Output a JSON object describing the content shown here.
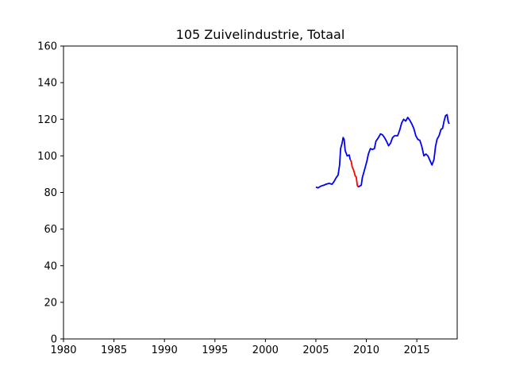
{
  "chart_data": {
    "type": "line",
    "title": "105 Zuivelindustrie, Totaal",
    "xlabel": "",
    "ylabel": "",
    "xlim": [
      1980,
      2019
    ],
    "ylim": [
      0,
      160
    ],
    "x_ticks": [
      1980,
      1985,
      1990,
      1995,
      2000,
      2005,
      2010,
      2015
    ],
    "y_ticks": [
      0,
      20,
      40,
      60,
      80,
      100,
      120,
      140,
      160
    ],
    "grid": false,
    "series": [
      {
        "color": "#0000ff",
        "points": [
          [
            2005.0,
            83.0
          ],
          [
            2005.2,
            82.5
          ],
          [
            2005.5,
            83.5
          ],
          [
            2005.8,
            84.0
          ],
          [
            2006.0,
            84.5
          ],
          [
            2006.3,
            85.0
          ],
          [
            2006.6,
            84.5
          ],
          [
            2006.8,
            86.0
          ],
          [
            2007.0,
            88.0
          ],
          [
            2007.2,
            89.5
          ],
          [
            2007.35,
            95.0
          ],
          [
            2007.45,
            104.0
          ],
          [
            2007.6,
            107.0
          ],
          [
            2007.7,
            110.0
          ],
          [
            2007.8,
            109.0
          ],
          [
            2007.9,
            103.0
          ],
          [
            2008.1,
            100.0
          ],
          [
            2008.3,
            100.5
          ],
          [
            2008.4,
            98.0
          ]
        ]
      },
      {
        "color": "#ff0000",
        "points": [
          [
            2008.4,
            98.0
          ],
          [
            2008.5,
            97.0
          ],
          [
            2008.6,
            94.0
          ],
          [
            2008.75,
            92.0
          ],
          [
            2008.9,
            89.0
          ],
          [
            2009.0,
            88.5
          ],
          [
            2009.1,
            84.0
          ],
          [
            2009.2,
            83.0
          ]
        ]
      },
      {
        "color": "#0000ff",
        "points": [
          [
            2009.2,
            83.0
          ],
          [
            2009.5,
            84.0
          ],
          [
            2009.6,
            88.0
          ],
          [
            2009.75,
            91.0
          ],
          [
            2009.9,
            94.0
          ],
          [
            2010.05,
            97.0
          ],
          [
            2010.2,
            101.0
          ],
          [
            2010.4,
            104.0
          ],
          [
            2010.6,
            103.5
          ],
          [
            2010.8,
            104.0
          ],
          [
            2010.95,
            108.0
          ],
          [
            2011.2,
            110.0
          ],
          [
            2011.4,
            112.0
          ],
          [
            2011.6,
            111.5
          ],
          [
            2011.8,
            110.0
          ],
          [
            2012.0,
            108.0
          ],
          [
            2012.2,
            105.5
          ],
          [
            2012.4,
            107.0
          ],
          [
            2012.6,
            110.0
          ],
          [
            2012.8,
            111.0
          ],
          [
            2013.1,
            111.0
          ],
          [
            2013.3,
            114.0
          ],
          [
            2013.5,
            118.0
          ],
          [
            2013.7,
            120.0
          ],
          [
            2013.9,
            119.0
          ],
          [
            2014.1,
            121.0
          ],
          [
            2014.3,
            119.5
          ],
          [
            2014.5,
            117.5
          ],
          [
            2014.7,
            115.0
          ],
          [
            2014.9,
            111.0
          ],
          [
            2015.1,
            109.0
          ],
          [
            2015.3,
            108.5
          ],
          [
            2015.5,
            105.0
          ],
          [
            2015.7,
            100.0
          ],
          [
            2015.9,
            101.0
          ],
          [
            2016.1,
            100.0
          ],
          [
            2016.3,
            97.5
          ],
          [
            2016.5,
            95.0
          ],
          [
            2016.7,
            98.0
          ],
          [
            2016.85,
            105.0
          ],
          [
            2017.0,
            109.0
          ],
          [
            2017.2,
            111.0
          ],
          [
            2017.4,
            114.5
          ],
          [
            2017.55,
            115.0
          ],
          [
            2017.7,
            119.0
          ],
          [
            2017.85,
            122.0
          ],
          [
            2018.0,
            122.5
          ],
          [
            2018.1,
            119.0
          ],
          [
            2018.2,
            117.5
          ]
        ]
      }
    ]
  }
}
